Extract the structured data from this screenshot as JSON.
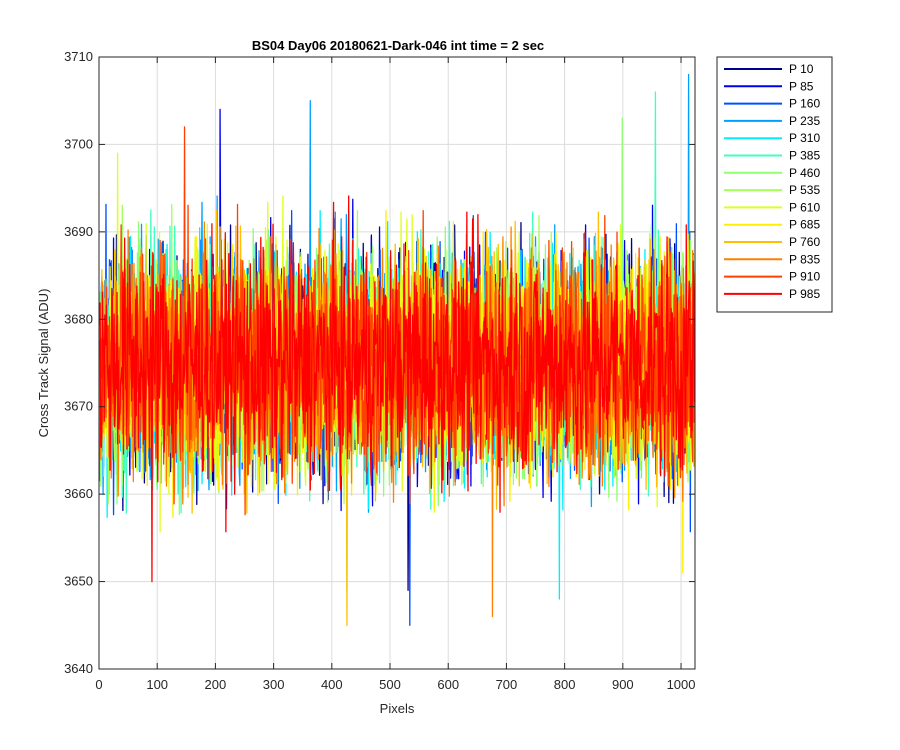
{
  "chart_data": {
    "type": "line",
    "title": "BS04 Day06 20180621-Dark-046 int time = 2 sec",
    "xlabel": "Pixels",
    "ylabel": "Cross Track Signal (ADU)",
    "xlim": [
      0,
      1024
    ],
    "ylim": [
      3640,
      3710
    ],
    "xticks": [
      0,
      100,
      200,
      300,
      400,
      500,
      600,
      700,
      800,
      900,
      1000
    ],
    "yticks": [
      3640,
      3650,
      3660,
      3670,
      3680,
      3690,
      3700,
      3710
    ],
    "grid": true,
    "legend_position": "outside-top-right",
    "n_points": 1024,
    "series_approximation": "noise around a mean of about 3675 ADU",
    "mean_approx": 3675,
    "series": [
      {
        "name": "P 10",
        "color": "#00008f",
        "peaks": [
          {
            "x": 530,
            "y": 3649
          }
        ]
      },
      {
        "name": "P 85",
        "color": "#0000ef",
        "peaks": [
          {
            "x": 207,
            "y": 3704
          }
        ]
      },
      {
        "name": "P 160",
        "color": "#0050ff",
        "peaks": [
          {
            "x": 533,
            "y": 3645
          }
        ]
      },
      {
        "name": "P 235",
        "color": "#00a0ff",
        "peaks": [
          {
            "x": 1012,
            "y": 3708
          },
          {
            "x": 362,
            "y": 3705
          }
        ]
      },
      {
        "name": "P 310",
        "color": "#00efff",
        "peaks": [
          {
            "x": 790,
            "y": 3648
          }
        ]
      },
      {
        "name": "P 385",
        "color": "#40ffbf",
        "peaks": [
          {
            "x": 955,
            "y": 3706
          }
        ]
      },
      {
        "name": "P 460",
        "color": "#8fff70",
        "peaks": [
          {
            "x": 898,
            "y": 3703
          }
        ]
      },
      {
        "name": "P 535",
        "color": "#a4ff5b",
        "peaks": [
          {
            "x": 425,
            "y": 3649
          }
        ]
      },
      {
        "name": "P 610",
        "color": "#dfff20",
        "peaks": [
          {
            "x": 31,
            "y": 3699
          }
        ]
      },
      {
        "name": "P 685",
        "color": "#ffef00",
        "peaks": [
          {
            "x": 1002,
            "y": 3651
          }
        ]
      },
      {
        "name": "P 760",
        "color": "#ffbf00",
        "peaks": [
          {
            "x": 425,
            "y": 3645
          }
        ]
      },
      {
        "name": "P 835",
        "color": "#ff8000",
        "peaks": [
          {
            "x": 675,
            "y": 3646
          }
        ]
      },
      {
        "name": "P 910",
        "color": "#ff4000",
        "peaks": [
          {
            "x": 146,
            "y": 3702
          }
        ]
      },
      {
        "name": "P 985",
        "color": "#ff0000",
        "peaks": [
          {
            "x": 90,
            "y": 3650
          }
        ]
      }
    ]
  }
}
